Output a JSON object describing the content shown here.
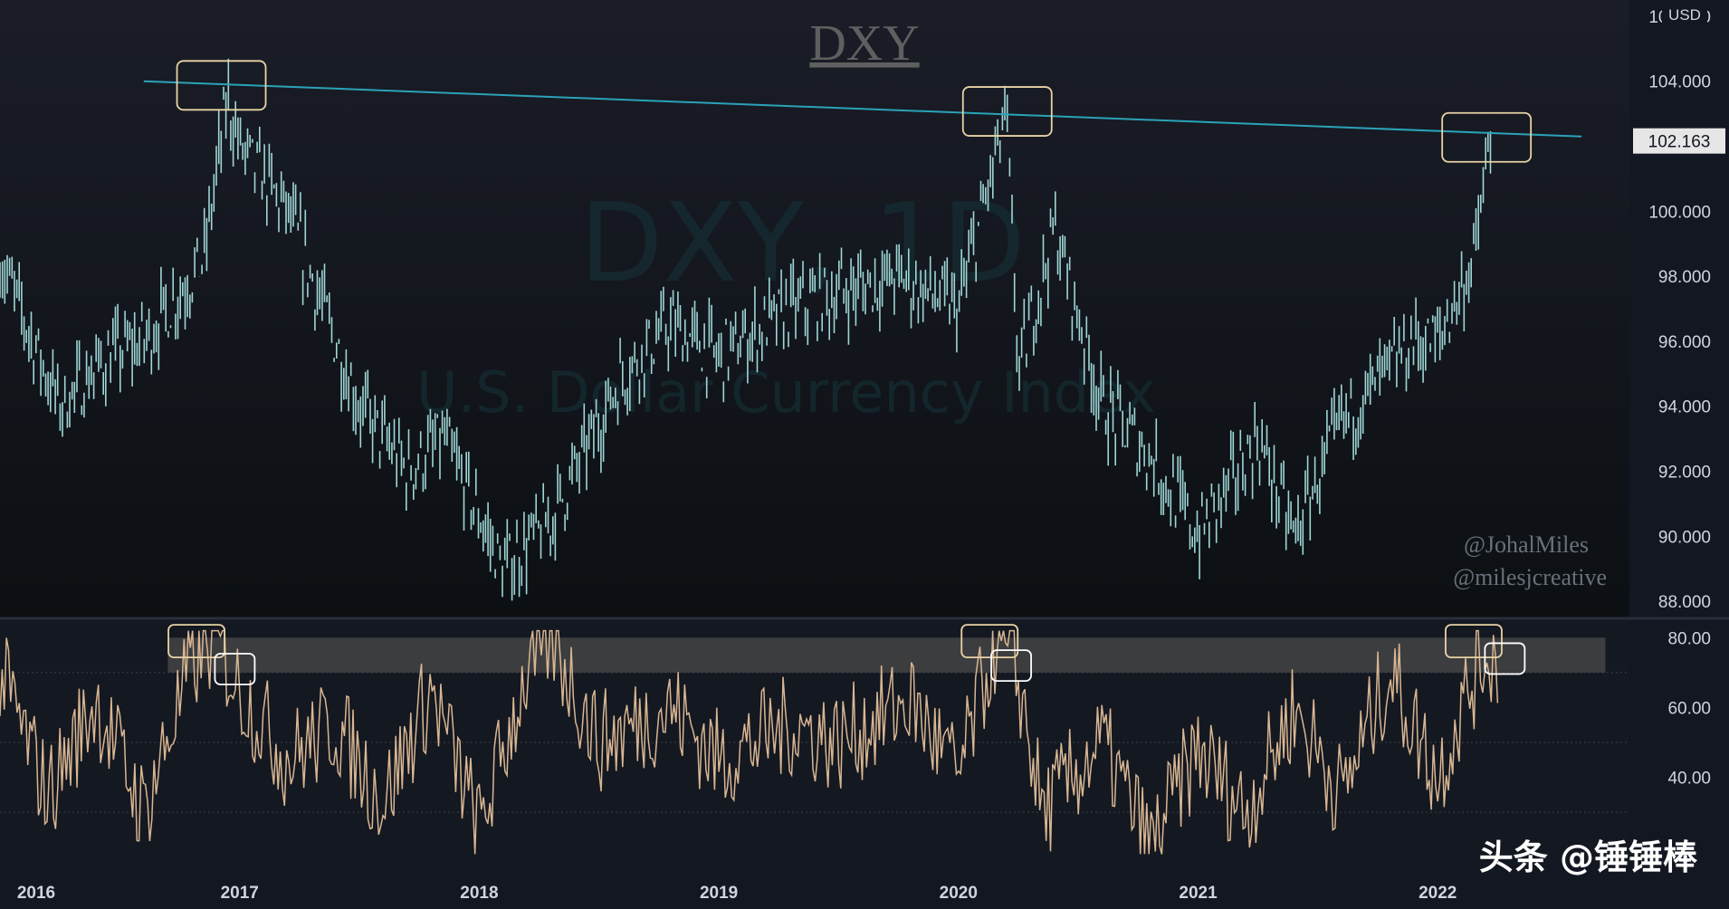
{
  "chart_data": [
    {
      "type": "line",
      "title": "DXY",
      "watermark_symbol": "DXY, 1D",
      "watermark_name": "U.S. Dollar Currency Index",
      "unit": "USD",
      "current_price": "102.163",
      "x": [
        2016.0,
        2016.25,
        2016.45,
        2016.6,
        2016.85,
        2016.95,
        2017.0,
        2017.2,
        2017.5,
        2017.7,
        2017.85,
        2018.1,
        2018.3,
        2018.6,
        2018.8,
        2019.0,
        2019.3,
        2019.5,
        2019.75,
        2020.0,
        2020.2,
        2020.25,
        2020.4,
        2020.6,
        2020.8,
        2021.0,
        2021.25,
        2021.4,
        2021.6,
        2021.9,
        2022.0,
        2022.15,
        2022.22
      ],
      "values": [
        98.5,
        94.0,
        95.5,
        96.0,
        98.5,
        103.5,
        102.0,
        100.0,
        94.0,
        92.0,
        93.0,
        89.0,
        90.5,
        95.0,
        96.5,
        95.5,
        97.0,
        97.5,
        98.0,
        97.0,
        103.0,
        95.0,
        99.5,
        94.0,
        92.5,
        90.0,
        93.0,
        90.0,
        93.5,
        96.0,
        96.0,
        98.5,
        102.2
      ],
      "trendline": {
        "from": [
          2016.6,
          104.0
        ],
        "to": [
          2022.6,
          102.3
        ]
      },
      "highlights": [
        [
          2016.92,
          103.9
        ],
        [
          2020.2,
          103.1
        ],
        [
          2022.2,
          102.3
        ]
      ],
      "yticks": [
        "106.000",
        "104.000",
        "102.000",
        "100.000",
        "98.000",
        "96.000",
        "94.000",
        "92.000",
        "90.000",
        "88.000"
      ],
      "ylim": [
        87.5,
        106.5
      ]
    },
    {
      "type": "line",
      "name": "oscillator",
      "x": [
        2016.0,
        2016.2,
        2016.4,
        2016.6,
        2016.8,
        2016.9,
        2017.0,
        2017.2,
        2017.4,
        2017.6,
        2017.8,
        2018.0,
        2018.2,
        2018.3,
        2018.5,
        2018.8,
        2019.0,
        2019.3,
        2019.5,
        2019.8,
        2020.0,
        2020.15,
        2020.25,
        2020.35,
        2020.6,
        2020.8,
        2021.0,
        2021.2,
        2021.4,
        2021.6,
        2021.8,
        2022.0,
        2022.1,
        2022.2,
        2022.25
      ],
      "values": [
        70,
        35,
        62,
        30,
        72,
        80,
        65,
        45,
        55,
        33,
        65,
        25,
        70,
        80,
        50,
        60,
        45,
        55,
        50,
        62,
        40,
        78,
        68,
        30,
        50,
        20,
        48,
        30,
        60,
        35,
        70,
        40,
        60,
        76,
        72
      ],
      "highlights": [
        [
          2016.82,
          79
        ],
        [
          2020.13,
          79
        ],
        [
          2022.15,
          79
        ]
      ],
      "highlights_low": [
        [
          2016.98,
          71
        ],
        [
          2020.22,
          72
        ],
        [
          2022.28,
          74
        ]
      ],
      "band": [
        70,
        80
      ],
      "yticks": [
        "80.00",
        "60.00",
        "40.00"
      ],
      "ylim": [
        15,
        85
      ]
    }
  ],
  "xticks": [
    "2016",
    "2017",
    "2018",
    "2019",
    "2020",
    "2021",
    "2022"
  ],
  "xtick_years": [
    2016,
    2017,
    2018,
    2019,
    2020,
    2021,
    2022
  ],
  "credits": [
    "@JohalMiles",
    "@milesjcreative"
  ],
  "corner_label": "头条 @锤锤棒",
  "colors": {
    "background": "#131722",
    "price_line": "#9fd6d6",
    "oscillator_line": "#d8b692",
    "trendline": "#2aa3b8",
    "highlight_box": "#e8d3a6",
    "highlight_box_low": "#ffffff",
    "band": "#4a4a4a"
  }
}
